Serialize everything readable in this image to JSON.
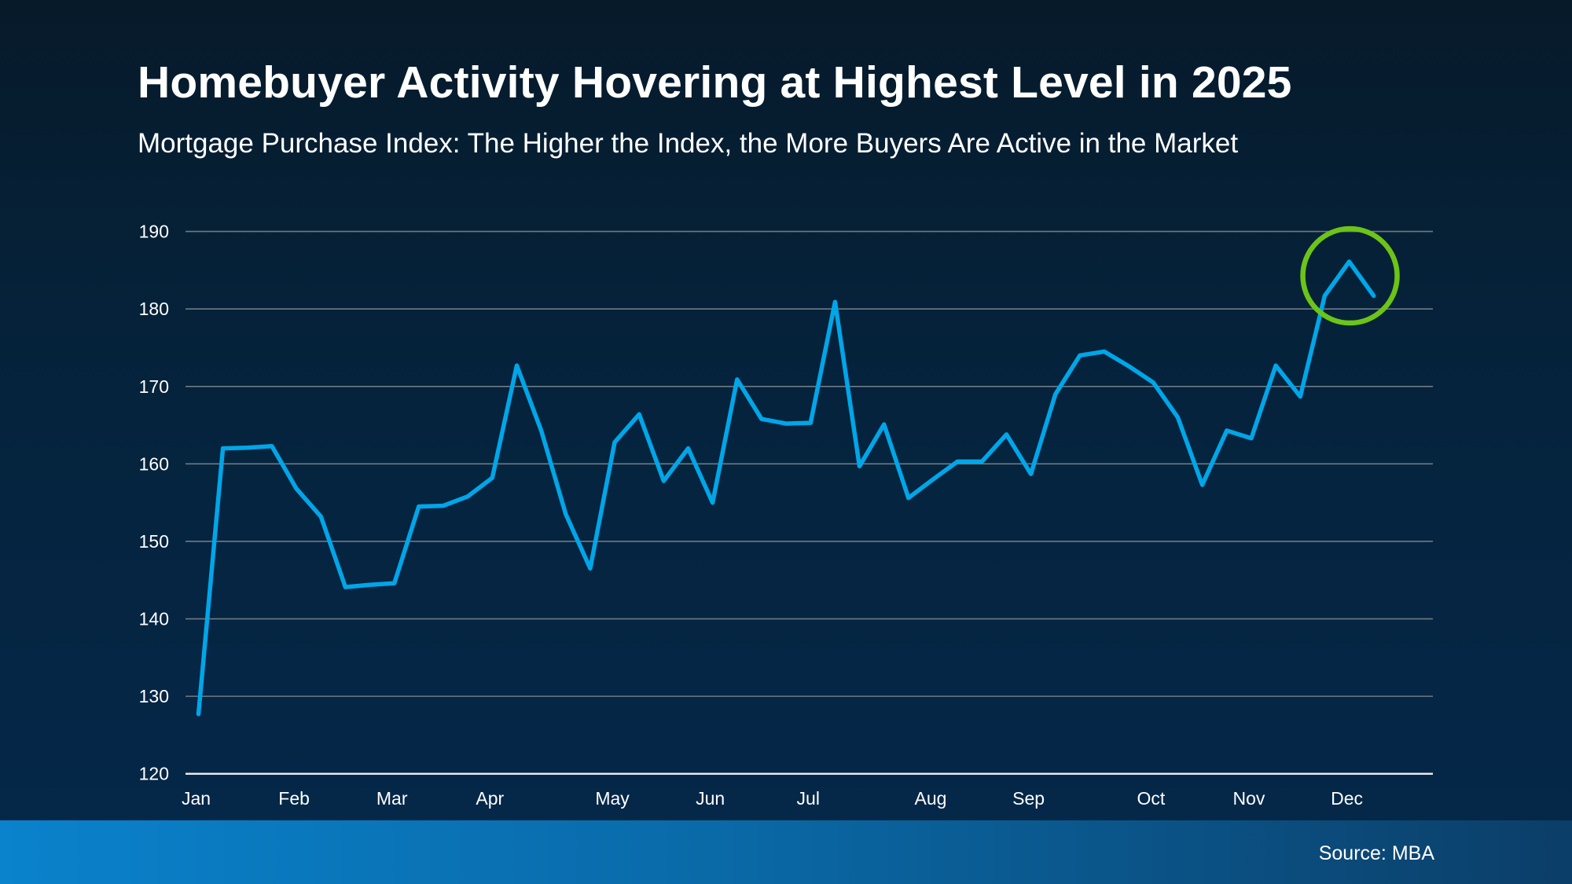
{
  "chart_data": {
    "type": "line",
    "title": "Homebuyer Activity Hovering at Highest Level in 2025",
    "subtitle": "Mortgage Purchase Index: The Higher the Index, the More Buyers Are Active in the Market",
    "xlabel": "",
    "ylabel": "",
    "ylim": [
      120,
      190
    ],
    "yticks": [
      120,
      130,
      140,
      150,
      160,
      170,
      180,
      190
    ],
    "grid": true,
    "categories": [
      "Jan",
      "",
      "",
      "",
      "Feb",
      "",
      "",
      "",
      "Mar",
      "",
      "",
      "",
      "Apr",
      "",
      "",
      "",
      "",
      "May",
      "",
      "",
      "",
      "Jun",
      "",
      "",
      "",
      "Jul",
      "",
      "",
      "",
      "",
      "Aug",
      "",
      "",
      "",
      "Sep",
      "",
      "",
      "",
      "",
      "Oct",
      "",
      "",
      "",
      "Nov",
      "",
      "",
      "",
      "Dec",
      ""
    ],
    "series": [
      {
        "values": [
          127.7,
          162,
          162.1,
          162.3,
          156.8,
          153.2,
          144.1,
          144.4,
          144.6,
          154.5,
          154.6,
          155.8,
          158.2,
          172.7,
          164.3,
          153.5,
          146.5,
          162.8,
          166.4,
          157.8,
          162,
          155,
          170.9,
          165.8,
          165.2,
          165.3,
          180.9,
          159.7,
          165.1,
          155.6,
          158,
          160.3,
          160.3,
          163.8,
          158.7,
          169,
          174,
          174.5,
          172.6,
          170.5,
          166,
          157.3,
          164.3,
          163.3,
          172.7,
          168.7,
          181.7,
          186.1,
          181.7
        ],
        "color": "#00a6e8"
      }
    ],
    "annotation": {
      "type": "circle-highlight",
      "around_index": 47,
      "color": "#6cc417"
    }
  },
  "source": "Source: MBA"
}
